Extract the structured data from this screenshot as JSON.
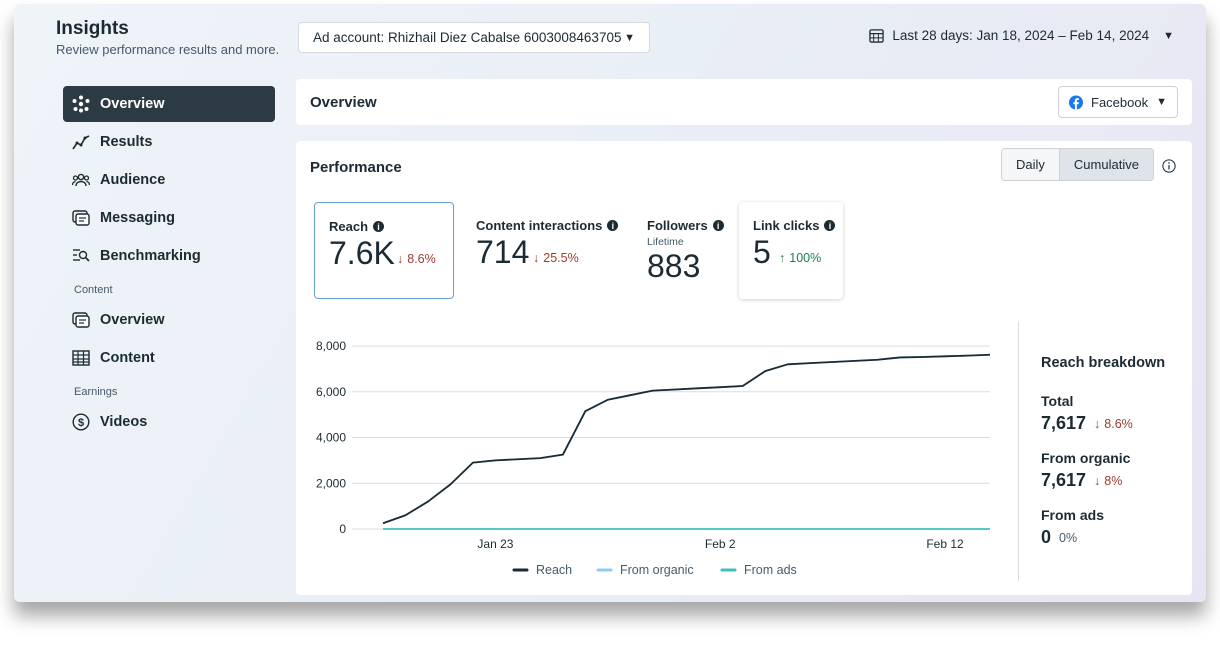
{
  "header": {
    "title": "Insights",
    "subtitle": "Review performance results and more.",
    "account": "Ad account: Rhizhail Diez Cabalse 6003008463705",
    "date_range": "Last 28 days: Jan 18, 2024 – Feb 14, 2024"
  },
  "sidebar": {
    "items": [
      {
        "label": "Overview",
        "icon": "overview-icon"
      },
      {
        "label": "Results",
        "icon": "results-icon"
      },
      {
        "label": "Audience",
        "icon": "audience-icon"
      },
      {
        "label": "Messaging",
        "icon": "messaging-icon"
      },
      {
        "label": "Benchmarking",
        "icon": "benchmarking-icon"
      }
    ],
    "content_section": "Content",
    "content_items": [
      {
        "label": "Overview",
        "icon": "content-overview-icon"
      },
      {
        "label": "Content",
        "icon": "table-icon"
      }
    ],
    "earnings_section": "Earnings",
    "earnings_items": [
      {
        "label": "Videos",
        "icon": "dollar-icon"
      }
    ]
  },
  "overview_panel": {
    "title": "Overview",
    "platform": "Facebook"
  },
  "performance": {
    "title": "Performance",
    "toggle": [
      "Daily",
      "Cumulative"
    ],
    "selected_toggle": "Cumulative",
    "metrics": {
      "reach": {
        "label": "Reach",
        "value": "7.6K",
        "delta": "8.6%",
        "direction": "down"
      },
      "content": {
        "label": "Content interactions",
        "value": "714",
        "delta": "25.5%",
        "direction": "down"
      },
      "followers": {
        "label": "Followers",
        "sublabel": "Lifetime",
        "value": "883"
      },
      "link": {
        "label": "Link clicks",
        "value": "5",
        "delta": "100%",
        "direction": "up"
      }
    }
  },
  "chart_data": {
    "type": "line",
    "x": [
      "Jan 18",
      "Jan 19",
      "Jan 20",
      "Jan 21",
      "Jan 22",
      "Jan 23",
      "Jan 24",
      "Jan 25",
      "Jan 26",
      "Jan 27",
      "Jan 28",
      "Jan 29",
      "Jan 30",
      "Jan 31",
      "Feb 1",
      "Feb 2",
      "Feb 3",
      "Feb 4",
      "Feb 5",
      "Feb 6",
      "Feb 7",
      "Feb 8",
      "Feb 9",
      "Feb 10",
      "Feb 11",
      "Feb 12",
      "Feb 13",
      "Feb 14"
    ],
    "x_tick_labels": [
      "Jan 23",
      "Feb 2",
      "Feb 12"
    ],
    "y_ticks": [
      "0",
      "2,000",
      "4,000",
      "6,000",
      "8,000"
    ],
    "ylim": [
      0,
      8000
    ],
    "grid": true,
    "legend_position": "bottom",
    "series": [
      {
        "name": "Reach",
        "color": "#1c2b33",
        "values": [
          250,
          600,
          1200,
          1950,
          2900,
          3000,
          3050,
          3100,
          3250,
          5150,
          5650,
          5850,
          6050,
          6100,
          6150,
          6200,
          6250,
          6900,
          7200,
          7250,
          7300,
          7350,
          7400,
          7500,
          7520,
          7550,
          7580,
          7617
        ]
      },
      {
        "name": "From organic",
        "color": "#8ecdf0",
        "values": [
          250,
          600,
          1200,
          1950,
          2900,
          3000,
          3050,
          3100,
          3250,
          5150,
          5650,
          5850,
          6050,
          6100,
          6150,
          6200,
          6250,
          6900,
          7200,
          7250,
          7300,
          7350,
          7400,
          7500,
          7520,
          7550,
          7580,
          7617
        ]
      },
      {
        "name": "From ads",
        "color": "#3fbfbf",
        "values": [
          0,
          0,
          0,
          0,
          0,
          0,
          0,
          0,
          0,
          0,
          0,
          0,
          0,
          0,
          0,
          0,
          0,
          0,
          0,
          0,
          0,
          0,
          0,
          0,
          0,
          0,
          0,
          0
        ]
      }
    ]
  },
  "breakdown": {
    "title": "Reach breakdown",
    "total_label": "Total",
    "total_value": "7,617",
    "total_delta": "8.6%",
    "organic_label": "From organic",
    "organic_value": "7,617",
    "organic_delta": "8%",
    "ads_label": "From ads",
    "ads_value": "0",
    "ads_delta": "0%"
  },
  "colors": {
    "accent": "#1877f2",
    "down": "#9b3a2d",
    "up": "#1e7d4c",
    "active_nav": "#2c3a43"
  }
}
